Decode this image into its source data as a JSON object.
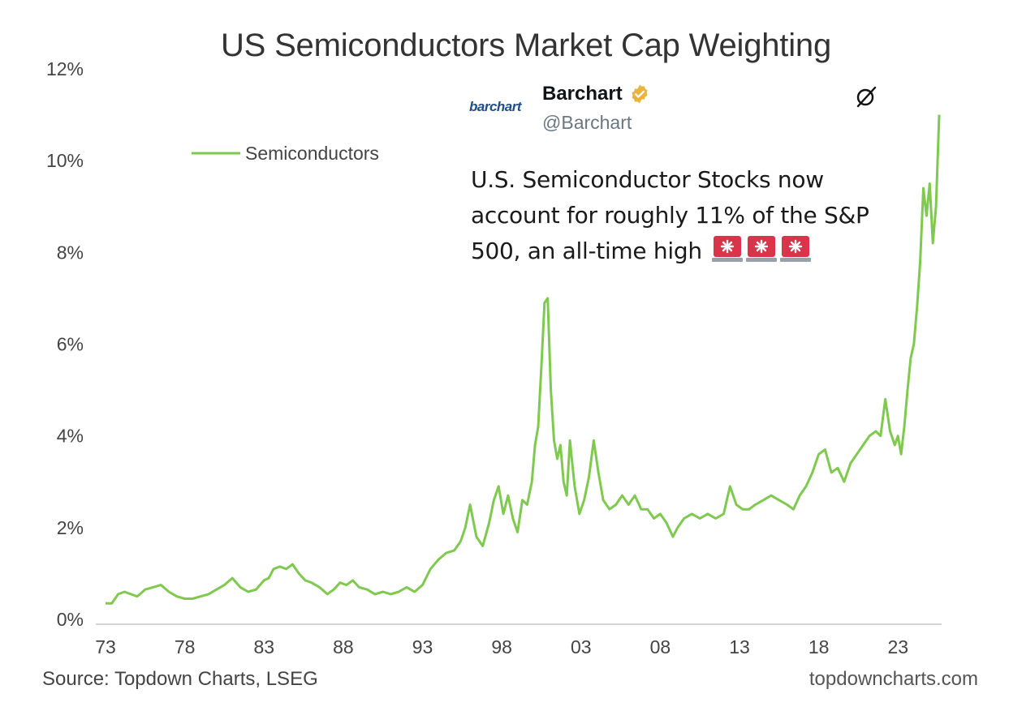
{
  "chart_data": {
    "type": "line",
    "title": "US Semiconductors Market Cap Weighting",
    "xlabel": "",
    "ylabel": "",
    "x_tick_labels": [
      "73",
      "78",
      "83",
      "88",
      "93",
      "98",
      "03",
      "08",
      "13",
      "18",
      "23"
    ],
    "x_tick_years": [
      1973,
      1978,
      1983,
      1988,
      1993,
      1998,
      2003,
      2008,
      2013,
      2018,
      2023
    ],
    "y_tick_labels": [
      "0%",
      "2%",
      "4%",
      "6%",
      "8%",
      "10%",
      "12%"
    ],
    "ylim": [
      0,
      12
    ],
    "xlim": [
      1973,
      2025.6
    ],
    "grid": false,
    "legend": "upper-left",
    "series": [
      {
        "name": "Semiconductors",
        "color": "#7fc94f",
        "x": [
          1973.0,
          1973.4,
          1973.8,
          1974.2,
          1974.6,
          1975.0,
          1975.5,
          1976.0,
          1976.5,
          1977.0,
          1977.5,
          1978.0,
          1978.5,
          1979.0,
          1979.5,
          1980.0,
          1980.5,
          1981.0,
          1981.5,
          1982.0,
          1982.5,
          1983.0,
          1983.3,
          1983.6,
          1984.0,
          1984.4,
          1984.8,
          1985.2,
          1985.6,
          1986.0,
          1986.5,
          1987.0,
          1987.4,
          1987.8,
          1988.2,
          1988.6,
          1989.0,
          1989.5,
          1990.0,
          1990.5,
          1991.0,
          1991.5,
          1992.0,
          1992.5,
          1993.0,
          1993.5,
          1994.0,
          1994.5,
          1995.0,
          1995.4,
          1995.7,
          1996.0,
          1996.4,
          1996.8,
          1997.2,
          1997.5,
          1997.8,
          1998.1,
          1998.4,
          1998.7,
          1999.0,
          1999.3,
          1999.6,
          1999.9,
          2000.1,
          2000.3,
          2000.5,
          2000.7,
          2000.9,
          2001.1,
          2001.3,
          2001.5,
          2001.7,
          2001.9,
          2002.1,
          2002.3,
          2002.6,
          2002.9,
          2003.2,
          2003.5,
          2003.8,
          2004.1,
          2004.4,
          2004.8,
          2005.2,
          2005.6,
          2006.0,
          2006.4,
          2006.8,
          2007.2,
          2007.6,
          2008.0,
          2008.4,
          2008.8,
          2009.1,
          2009.5,
          2010.0,
          2010.5,
          2011.0,
          2011.5,
          2012.0,
          2012.4,
          2012.8,
          2013.2,
          2013.6,
          2014.0,
          2014.5,
          2015.0,
          2015.5,
          2016.0,
          2016.4,
          2016.8,
          2017.2,
          2017.6,
          2018.0,
          2018.4,
          2018.8,
          2019.2,
          2019.6,
          2020.0,
          2020.4,
          2020.8,
          2021.2,
          2021.6,
          2021.9,
          2022.2,
          2022.5,
          2022.8,
          2023.0,
          2023.2,
          2023.4,
          2023.6,
          2023.8,
          2024.0,
          2024.2,
          2024.4,
          2024.6,
          2024.8,
          2025.0,
          2025.2,
          2025.4,
          2025.6
        ],
        "y": [
          0.35,
          0.35,
          0.55,
          0.6,
          0.55,
          0.5,
          0.65,
          0.7,
          0.75,
          0.6,
          0.5,
          0.45,
          0.45,
          0.5,
          0.55,
          0.65,
          0.75,
          0.9,
          0.7,
          0.6,
          0.65,
          0.85,
          0.9,
          1.1,
          1.15,
          1.1,
          1.2,
          1.0,
          0.85,
          0.8,
          0.7,
          0.55,
          0.65,
          0.8,
          0.75,
          0.85,
          0.7,
          0.65,
          0.55,
          0.6,
          0.55,
          0.6,
          0.7,
          0.6,
          0.75,
          1.1,
          1.3,
          1.45,
          1.5,
          1.7,
          2.0,
          2.5,
          1.8,
          1.6,
          2.1,
          2.6,
          2.9,
          2.3,
          2.7,
          2.2,
          1.9,
          2.6,
          2.5,
          3.0,
          3.8,
          4.2,
          5.5,
          6.9,
          7.0,
          5.0,
          3.9,
          3.5,
          3.8,
          3.0,
          2.7,
          3.9,
          2.9,
          2.3,
          2.6,
          3.1,
          3.9,
          3.2,
          2.6,
          2.4,
          2.5,
          2.7,
          2.5,
          2.7,
          2.4,
          2.4,
          2.2,
          2.3,
          2.1,
          1.8,
          2.0,
          2.2,
          2.3,
          2.2,
          2.3,
          2.2,
          2.3,
          2.9,
          2.5,
          2.4,
          2.4,
          2.5,
          2.6,
          2.7,
          2.6,
          2.5,
          2.4,
          2.7,
          2.9,
          3.2,
          3.6,
          3.7,
          3.2,
          3.3,
          3.0,
          3.4,
          3.6,
          3.8,
          4.0,
          4.1,
          4.0,
          4.8,
          4.1,
          3.8,
          4.0,
          3.6,
          4.2,
          5.0,
          5.7,
          6.0,
          6.8,
          7.8,
          9.4,
          8.8,
          9.5,
          8.2,
          9.0,
          11.0
        ]
      }
    ]
  },
  "tweet": {
    "avatar_text": "barchart",
    "display_name": "Barchart",
    "handle": "@Barchart",
    "text": "U.S. Semiconductor Stocks now account for roughly 11% of the S&P 500, an all-time high",
    "icons": [
      "verified-badge-icon",
      "grok-icon",
      "siren-icon",
      "siren-icon",
      "siren-icon"
    ],
    "verified_color": "#e8b53a",
    "siren_color": "#d9344a"
  },
  "footer": {
    "source": "Source: Topdown Charts, LSEG",
    "site": "topdowncharts.com"
  }
}
